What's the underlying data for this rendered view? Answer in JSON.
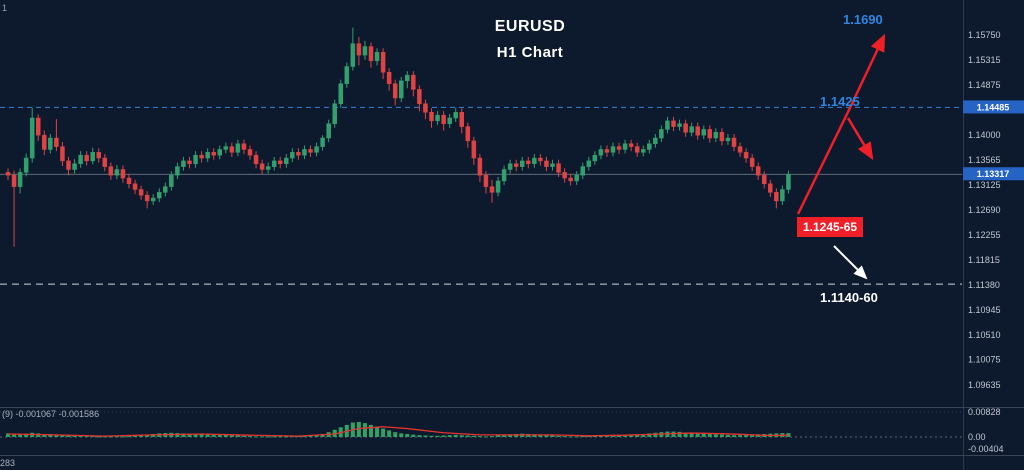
{
  "window": {
    "corner_label": "1"
  },
  "colors": {
    "background": "#0d1a2e",
    "bull": "#31a06e",
    "bear": "#e04343",
    "histogram": "#2fa263",
    "signal_line": "#e8332d",
    "resistance_dashed": "#3583d6",
    "support_dashed": "#cfd4da",
    "current_price_line": "#7c8694",
    "price_tag_bg": "#2563c4",
    "annotation_blue": "#2f86e0",
    "annotation_red": "#f01f28"
  },
  "chart_data": {
    "type": "candlestick",
    "symbol_title": "EURUSD",
    "timeframe_title": "H1 Chart",
    "current_price": 1.13317,
    "current_price_label": "1.13317",
    "resistance_level": 1.14485,
    "resistance_tag_label": "1.14485",
    "support_level": 1.11395,
    "price_axis_labels": [
      "1.15750",
      "1.15315",
      "1.14875",
      "1.14440",
      "1.14000",
      "1.13565",
      "1.13125",
      "1.12690",
      "1.12255",
      "1.11815",
      "1.11380",
      "1.10945",
      "1.10510",
      "1.10075",
      "1.09635"
    ],
    "annotations": {
      "target_up": "1.1690",
      "resistance_label": "1.1425",
      "supply_zone": "1.1245-65",
      "support_zone": "1.1140-60"
    },
    "candles": [
      [
        1.1335,
        1.1342,
        1.1322,
        1.133
      ],
      [
        1.133,
        1.1338,
        1.1205,
        1.131
      ],
      [
        1.131,
        1.1342,
        1.1298,
        1.1335
      ],
      [
        1.1335,
        1.1368,
        1.1328,
        1.136
      ],
      [
        1.136,
        1.1448,
        1.1352,
        1.143
      ],
      [
        1.143,
        1.1436,
        1.139,
        1.14
      ],
      [
        1.14,
        1.1408,
        1.1365,
        1.1375
      ],
      [
        1.1375,
        1.1402,
        1.1368,
        1.1395
      ],
      [
        1.1395,
        1.1428,
        1.1372,
        1.138
      ],
      [
        1.138,
        1.1388,
        1.1346,
        1.1355
      ],
      [
        1.1355,
        1.1362,
        1.133,
        1.134
      ],
      [
        1.134,
        1.1358,
        1.1333,
        1.135
      ],
      [
        1.135,
        1.1372,
        1.1343,
        1.1365
      ],
      [
        1.1365,
        1.1372,
        1.1347,
        1.1355
      ],
      [
        1.1355,
        1.1378,
        1.1349,
        1.137
      ],
      [
        1.137,
        1.1377,
        1.1352,
        1.136
      ],
      [
        1.136,
        1.1367,
        1.1337,
        1.1345
      ],
      [
        1.1345,
        1.1352,
        1.1322,
        1.133
      ],
      [
        1.133,
        1.1348,
        1.1323,
        1.134
      ],
      [
        1.134,
        1.1347,
        1.1317,
        1.1325
      ],
      [
        1.1325,
        1.1332,
        1.1307,
        1.1315
      ],
      [
        1.1315,
        1.1322,
        1.1297,
        1.1305
      ],
      [
        1.1305,
        1.1312,
        1.1287,
        1.1295
      ],
      [
        1.1295,
        1.1302,
        1.1272,
        1.1285
      ],
      [
        1.1285,
        1.1297,
        1.1278,
        1.129
      ],
      [
        1.129,
        1.1307,
        1.1283,
        1.13
      ],
      [
        1.13,
        1.1317,
        1.1293,
        1.131
      ],
      [
        1.131,
        1.1337,
        1.1303,
        1.133
      ],
      [
        1.133,
        1.1352,
        1.1323,
        1.1345
      ],
      [
        1.1345,
        1.1362,
        1.1338,
        1.1355
      ],
      [
        1.1355,
        1.1362,
        1.1342,
        1.135
      ],
      [
        1.135,
        1.1372,
        1.1343,
        1.1365
      ],
      [
        1.1365,
        1.1372,
        1.1352,
        1.136
      ],
      [
        1.136,
        1.1377,
        1.1353,
        1.137
      ],
      [
        1.137,
        1.1377,
        1.1357,
        1.1365
      ],
      [
        1.1365,
        1.1382,
        1.1358,
        1.1375
      ],
      [
        1.1375,
        1.1387,
        1.1368,
        1.138
      ],
      [
        1.138,
        1.1387,
        1.1362,
        1.137
      ],
      [
        1.137,
        1.1392,
        1.1363,
        1.1385
      ],
      [
        1.1385,
        1.1392,
        1.1367,
        1.1375
      ],
      [
        1.1375,
        1.1382,
        1.1357,
        1.1365
      ],
      [
        1.1365,
        1.1372,
        1.1342,
        1.135
      ],
      [
        1.135,
        1.1357,
        1.1332,
        1.134
      ],
      [
        1.134,
        1.1352,
        1.1333,
        1.1345
      ],
      [
        1.1345,
        1.1362,
        1.1338,
        1.1355
      ],
      [
        1.1355,
        1.1362,
        1.1342,
        1.135
      ],
      [
        1.135,
        1.1367,
        1.1343,
        1.136
      ],
      [
        1.136,
        1.1377,
        1.1353,
        1.137
      ],
      [
        1.137,
        1.1377,
        1.1357,
        1.1365
      ],
      [
        1.1365,
        1.1382,
        1.1358,
        1.1375
      ],
      [
        1.1375,
        1.1382,
        1.1362,
        1.137
      ],
      [
        1.137,
        1.1387,
        1.1363,
        1.138
      ],
      [
        1.138,
        1.14,
        1.1373,
        1.1395
      ],
      [
        1.1395,
        1.1427,
        1.1388,
        1.142
      ],
      [
        1.142,
        1.1462,
        1.1413,
        1.1455
      ],
      [
        1.1455,
        1.1497,
        1.1448,
        1.149
      ],
      [
        1.149,
        1.1527,
        1.1483,
        1.152
      ],
      [
        1.152,
        1.1588,
        1.1513,
        1.156
      ],
      [
        1.156,
        1.1572,
        1.1522,
        1.154
      ],
      [
        1.154,
        1.1565,
        1.1532,
        1.1555
      ],
      [
        1.1555,
        1.1562,
        1.1518,
        1.153
      ],
      [
        1.153,
        1.1552,
        1.1522,
        1.1545
      ],
      [
        1.1545,
        1.1552,
        1.1498,
        1.151
      ],
      [
        1.151,
        1.1517,
        1.1478,
        1.149
      ],
      [
        1.149,
        1.1497,
        1.1452,
        1.1465
      ],
      [
        1.1465,
        1.1502,
        1.1458,
        1.1495
      ],
      [
        1.1495,
        1.1512,
        1.1482,
        1.1505
      ],
      [
        1.1505,
        1.1512,
        1.1468,
        1.148
      ],
      [
        1.148,
        1.1487,
        1.1442,
        1.1455
      ],
      [
        1.1455,
        1.1462,
        1.1428,
        1.144
      ],
      [
        1.144,
        1.1447,
        1.1413,
        1.1425
      ],
      [
        1.1425,
        1.1442,
        1.1418,
        1.1435
      ],
      [
        1.1435,
        1.1442,
        1.1408,
        1.142
      ],
      [
        1.142,
        1.1437,
        1.1413,
        1.143
      ],
      [
        1.143,
        1.1448,
        1.1423,
        1.144
      ],
      [
        1.144,
        1.1447,
        1.1403,
        1.1415
      ],
      [
        1.1415,
        1.1422,
        1.1378,
        1.139
      ],
      [
        1.139,
        1.1397,
        1.1348,
        1.136
      ],
      [
        1.136,
        1.1367,
        1.1318,
        1.133
      ],
      [
        1.133,
        1.1337,
        1.1298,
        1.131
      ],
      [
        1.131,
        1.1322,
        1.1282,
        1.13
      ],
      [
        1.13,
        1.1327,
        1.1293,
        1.132
      ],
      [
        1.132,
        1.1347,
        1.1313,
        1.134
      ],
      [
        1.134,
        1.1357,
        1.1333,
        1.135
      ],
      [
        1.135,
        1.1357,
        1.1337,
        1.1345
      ],
      [
        1.1345,
        1.1362,
        1.1338,
        1.1355
      ],
      [
        1.1355,
        1.1362,
        1.1342,
        1.135
      ],
      [
        1.135,
        1.1367,
        1.1343,
        1.136
      ],
      [
        1.136,
        1.1367,
        1.1347,
        1.1355
      ],
      [
        1.1355,
        1.1362,
        1.1337,
        1.1345
      ],
      [
        1.1345,
        1.1357,
        1.1338,
        1.135
      ],
      [
        1.135,
        1.1357,
        1.1327,
        1.1335
      ],
      [
        1.1335,
        1.1342,
        1.1317,
        1.1325
      ],
      [
        1.1325,
        1.1332,
        1.1312,
        1.132
      ],
      [
        1.132,
        1.1337,
        1.1313,
        1.133
      ],
      [
        1.133,
        1.1352,
        1.1323,
        1.1345
      ],
      [
        1.1345,
        1.1362,
        1.1338,
        1.1355
      ],
      [
        1.1355,
        1.1372,
        1.1348,
        1.1365
      ],
      [
        1.1365,
        1.1382,
        1.1358,
        1.1375
      ],
      [
        1.1375,
        1.1382,
        1.1362,
        1.137
      ],
      [
        1.137,
        1.1387,
        1.1363,
        1.138
      ],
      [
        1.138,
        1.1387,
        1.1367,
        1.1375
      ],
      [
        1.1375,
        1.1392,
        1.1368,
        1.1385
      ],
      [
        1.1385,
        1.1392,
        1.1372,
        1.138
      ],
      [
        1.138,
        1.1387,
        1.1362,
        1.137
      ],
      [
        1.137,
        1.1382,
        1.1363,
        1.1375
      ],
      [
        1.1375,
        1.1392,
        1.1368,
        1.1385
      ],
      [
        1.1385,
        1.1402,
        1.1378,
        1.1395
      ],
      [
        1.1395,
        1.1417,
        1.1388,
        1.141
      ],
      [
        1.141,
        1.1432,
        1.1403,
        1.1425
      ],
      [
        1.1425,
        1.1432,
        1.1407,
        1.1415
      ],
      [
        1.1415,
        1.1427,
        1.1408,
        1.142
      ],
      [
        1.142,
        1.1427,
        1.1397,
        1.1405
      ],
      [
        1.1405,
        1.1422,
        1.1398,
        1.1415
      ],
      [
        1.1415,
        1.1422,
        1.1392,
        1.14
      ],
      [
        1.14,
        1.1417,
        1.1393,
        1.141
      ],
      [
        1.141,
        1.1417,
        1.1387,
        1.1395
      ],
      [
        1.1395,
        1.1412,
        1.1388,
        1.1405
      ],
      [
        1.1405,
        1.1412,
        1.1382,
        1.139
      ],
      [
        1.139,
        1.1402,
        1.1383,
        1.1395
      ],
      [
        1.1395,
        1.1402,
        1.1372,
        1.138
      ],
      [
        1.138,
        1.1387,
        1.1362,
        1.137
      ],
      [
        1.137,
        1.1377,
        1.1352,
        1.136
      ],
      [
        1.136,
        1.1367,
        1.1337,
        1.1345
      ],
      [
        1.1345,
        1.1352,
        1.1322,
        1.133
      ],
      [
        1.133,
        1.1337,
        1.1307,
        1.1315
      ],
      [
        1.1315,
        1.1322,
        1.1292,
        1.13
      ],
      [
        1.13,
        1.1307,
        1.1272,
        1.1285
      ],
      [
        1.1285,
        1.1312,
        1.1278,
        1.1305
      ],
      [
        1.1305,
        1.1338,
        1.1298,
        1.13317
      ]
    ],
    "histogram": [
      0.0012,
      0.001,
      0.0009,
      0.0011,
      0.0014,
      0.0012,
      0.001,
      0.0009,
      0.0008,
      0.0006,
      0.0005,
      0.0004,
      0.0004,
      0.0003,
      0.0003,
      0.0002,
      0.0002,
      0.0002,
      0.0002,
      0.0002,
      0.0003,
      0.0004,
      0.0006,
      0.0008,
      0.001,
      0.0012,
      0.0013,
      0.0014,
      0.0013,
      0.0012,
      0.0011,
      0.001,
      0.0009,
      0.0009,
      0.0008,
      0.0008,
      0.0007,
      0.0006,
      0.0005,
      0.0004,
      0.0003,
      0.0002,
      0.0002,
      0.0002,
      0.0002,
      0.0002,
      0.0002,
      0.0003,
      0.0003,
      0.0003,
      0.0004,
      0.0006,
      0.001,
      0.0016,
      0.0024,
      0.0032,
      0.004,
      0.0048,
      0.005,
      0.0046,
      0.004,
      0.0034,
      0.0028,
      0.0022,
      0.0016,
      0.0012,
      0.001,
      0.0008,
      0.0006,
      0.0005,
      0.0004,
      0.0004,
      0.0005,
      0.0006,
      0.0007,
      0.0006,
      0.0005,
      0.0004,
      0.0003,
      0.0002,
      0.0003,
      0.0005,
      0.0007,
      0.0009,
      0.001,
      0.0011,
      0.001,
      0.0009,
      0.0008,
      0.0006,
      0.0005,
      0.0004,
      0.0003,
      0.0002,
      0.0002,
      0.0003,
      0.0004,
      0.0005,
      0.0006,
      0.0006,
      0.0007,
      0.0007,
      0.0008,
      0.0008,
      0.0009,
      0.001,
      0.0012,
      0.0014,
      0.0016,
      0.0018,
      0.0018,
      0.0017,
      0.0015,
      0.0014,
      0.0012,
      0.0011,
      0.001,
      0.0009,
      0.0008,
      0.0007,
      0.0006,
      0.0006,
      0.0007,
      0.0008,
      0.0009,
      0.001,
      0.0011,
      0.0012,
      0.0013,
      0.0013
    ],
    "signal_points": [
      [
        0,
        0.001
      ],
      [
        8,
        0.0007
      ],
      [
        16,
        0.0003
      ],
      [
        24,
        0.0007
      ],
      [
        32,
        0.001
      ],
      [
        40,
        0.0006
      ],
      [
        48,
        0.0003
      ],
      [
        54,
        0.001
      ],
      [
        58,
        0.0028
      ],
      [
        62,
        0.0034
      ],
      [
        66,
        0.0028
      ],
      [
        72,
        0.0014
      ],
      [
        78,
        0.0007
      ],
      [
        84,
        0.0007
      ],
      [
        90,
        0.0007
      ],
      [
        96,
        0.0004
      ],
      [
        102,
        0.0006
      ],
      [
        108,
        0.001
      ],
      [
        113,
        0.0013
      ],
      [
        118,
        0.0011
      ],
      [
        122,
        0.0008
      ],
      [
        126,
        0.0005
      ],
      [
        129,
        0.0006
      ]
    ],
    "indicator_label": "(9)  -0.001067  -0.001586",
    "indicator_axis": [
      {
        "label": "0.00828",
        "value": 0.00828
      },
      {
        "label": "0.00",
        "value": 0.0
      },
      {
        "label": "-0.00404",
        "value": -0.00404
      }
    ],
    "bottom_left_label": "283"
  }
}
